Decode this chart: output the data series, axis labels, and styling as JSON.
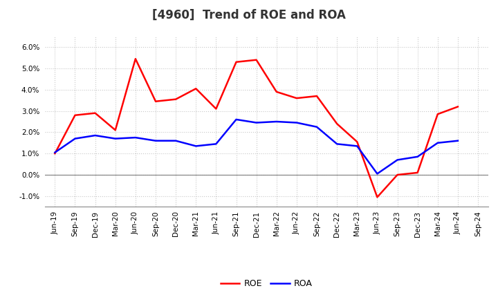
{
  "title": "[4960]  Trend of ROE and ROA",
  "labels": [
    "Jun-19",
    "Sep-19",
    "Dec-19",
    "Mar-20",
    "Jun-20",
    "Sep-20",
    "Dec-20",
    "Mar-21",
    "Jun-21",
    "Sep-21",
    "Dec-21",
    "Mar-22",
    "Jun-22",
    "Sep-22",
    "Dec-22",
    "Mar-23",
    "Jun-23",
    "Sep-23",
    "Dec-23",
    "Mar-24",
    "Jun-24",
    "Sep-24"
  ],
  "ROE": [
    1.0,
    2.8,
    2.9,
    2.1,
    5.45,
    3.45,
    3.55,
    4.05,
    3.1,
    5.3,
    5.4,
    3.9,
    3.6,
    3.7,
    2.4,
    1.55,
    -1.05,
    0.0,
    0.1,
    2.85,
    3.2,
    null
  ],
  "ROA": [
    1.05,
    1.7,
    1.85,
    1.7,
    1.75,
    1.6,
    1.6,
    1.35,
    1.45,
    2.6,
    2.45,
    2.5,
    2.45,
    2.25,
    1.45,
    1.35,
    0.05,
    0.7,
    0.85,
    1.5,
    1.6,
    null
  ],
  "roe_color": "#FF0000",
  "roa_color": "#0000FF",
  "ylim_min": -1.5,
  "ylim_max": 6.5,
  "yticks": [
    -1.0,
    0.0,
    1.0,
    2.0,
    3.0,
    4.0,
    5.0,
    6.0
  ],
  "bg_color": "#FFFFFF",
  "grid_color": "#C8C8C8",
  "zero_line_color": "#888888",
  "title_fontsize": 12,
  "tick_fontsize": 7.5,
  "legend_fontsize": 9,
  "linewidth": 1.8
}
